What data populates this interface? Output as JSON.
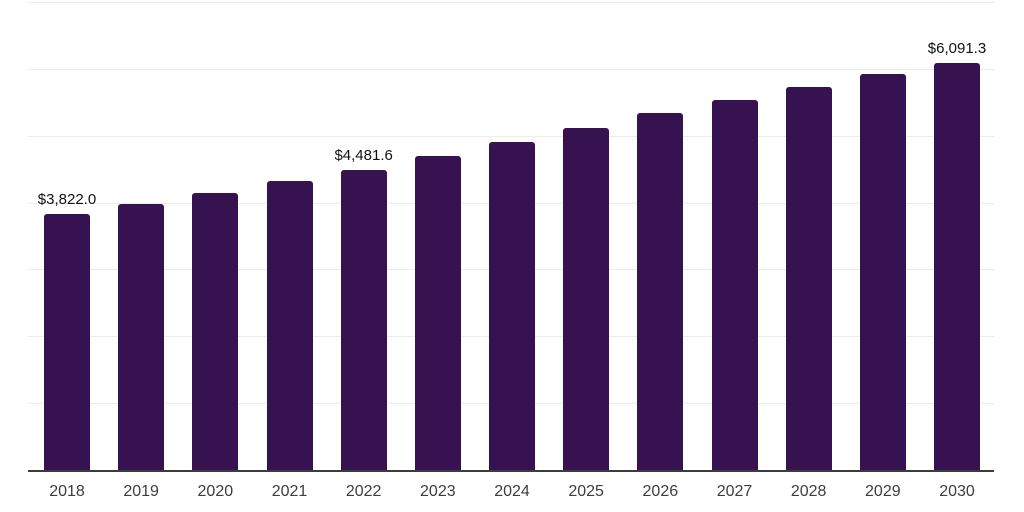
{
  "chart_data": {
    "type": "bar",
    "title": "",
    "xlabel": "",
    "ylabel": "",
    "categories": [
      "2018",
      "2019",
      "2020",
      "2021",
      "2022",
      "2023",
      "2024",
      "2025",
      "2026",
      "2027",
      "2028",
      "2029",
      "2030"
    ],
    "values": [
      3822.0,
      3985,
      4150,
      4330,
      4481.6,
      4690,
      4900,
      5120,
      5335,
      5540,
      5730,
      5925,
      6091.3
    ],
    "data_labels": [
      "$3,822.0",
      null,
      null,
      null,
      "$4,481.6",
      null,
      null,
      null,
      null,
      null,
      null,
      null,
      "$6,091.3"
    ],
    "ylim": [
      0,
      7000
    ],
    "gridline_step": 1000,
    "grid": true,
    "legend": false,
    "colors": {
      "bar": "#371250",
      "gridline": "#ececec",
      "axis_line": "#3c3c3c",
      "x_label": "#3d3d3d",
      "data_label": "#111111",
      "background": "#ffffff"
    }
  }
}
